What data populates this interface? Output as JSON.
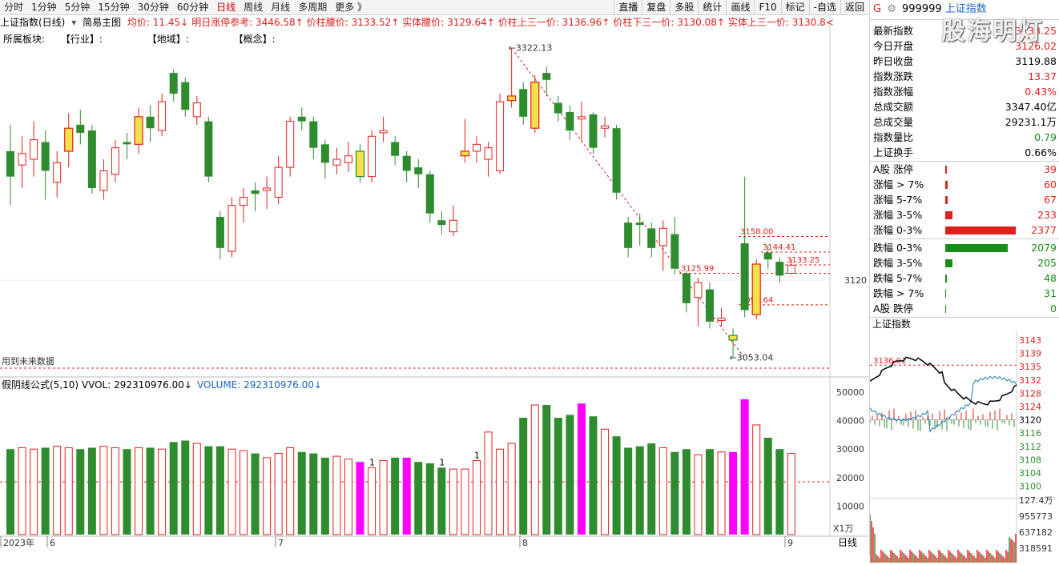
{
  "toolbar": {
    "left": [
      "分时",
      "1分钟",
      "5分钟",
      "15分钟",
      "30分钟",
      "60分钟",
      "日线",
      "周线",
      "月线",
      "多周期",
      "更多 》"
    ],
    "active": "日线",
    "right": [
      "直播",
      "复盘",
      "多股",
      "统计",
      "画线",
      "F10",
      "标记",
      "-自选",
      "返回"
    ]
  },
  "info": {
    "index_name": "上证指数(日线)",
    "main_chart": "简易主图",
    "items": [
      {
        "label": "均价: 11.45",
        "color": "#e0201c",
        "arrow": "↓"
      },
      {
        "label": "明日涨停参考: 3446.58",
        "color": "#e0201c",
        "arrow": "↑"
      },
      {
        "label": "价柱腰价: 3133.52",
        "color": "#e0201c",
        "arrow": "↑"
      },
      {
        "label": "实体腰价: 3129.64",
        "color": "#e0201c",
        "arrow": "↑"
      },
      {
        "label": "价柱上三一价: 3136.96",
        "color": "#e0201c",
        "arrow": "↑"
      },
      {
        "label": "价柱下三一价: 3130.08",
        "color": "#e0201c",
        "arrow": "↑"
      },
      {
        "label": "实体上三一价: 3130.8",
        "color": "#e0201c",
        "arrow": "<"
      }
    ]
  },
  "sectors": {
    "label": "所属板块:",
    "industry": "【行业】:",
    "region": "【地域】:",
    "concept": "【概念】:"
  },
  "chart_data": {
    "type": "candlestick",
    "price_axis_label": "3120",
    "annotations": {
      "high": "3322.13",
      "low": "3053.04",
      "level_3158": "3158.00",
      "level_3144": "3144.41",
      "level_3133": "3133.25",
      "level_3125": "3125.99",
      "level_3098": "3098.64"
    },
    "future_data_label": "用到未来数据",
    "months": [
      "2023年",
      "6",
      "7",
      "8",
      "9"
    ],
    "candles": [
      {
        "o": 3232,
        "c": 3210,
        "h": 3255,
        "l": 3185
      },
      {
        "o": 3220,
        "c": 3230,
        "h": 3245,
        "l": 3200
      },
      {
        "o": 3225,
        "c": 3242,
        "h": 3258,
        "l": 3210
      },
      {
        "o": 3240,
        "c": 3215,
        "h": 3250,
        "l": 3190
      },
      {
        "o": 3205,
        "c": 3222,
        "h": 3232,
        "l": 3192
      },
      {
        "o": 3232,
        "c": 3252,
        "h": 3265,
        "l": 3218
      },
      {
        "o": 3255,
        "c": 3248,
        "h": 3268,
        "l": 3238
      },
      {
        "o": 3250,
        "c": 3200,
        "h": 3255,
        "l": 3195
      },
      {
        "o": 3198,
        "c": 3215,
        "h": 3225,
        "l": 3190
      },
      {
        "o": 3212,
        "c": 3235,
        "h": 3242,
        "l": 3205
      },
      {
        "o": 3240,
        "c": 3238,
        "h": 3248,
        "l": 3225
      },
      {
        "o": 3238,
        "c": 3262,
        "h": 3270,
        "l": 3230
      },
      {
        "o": 3262,
        "c": 3252,
        "h": 3272,
        "l": 3240
      },
      {
        "o": 3250,
        "c": 3275,
        "h": 3282,
        "l": 3245
      },
      {
        "o": 3300,
        "c": 3282,
        "h": 3303,
        "l": 3275
      },
      {
        "o": 3292,
        "c": 3268,
        "h": 3296,
        "l": 3262
      },
      {
        "o": 3262,
        "c": 3274,
        "h": 3280,
        "l": 3255
      },
      {
        "o": 3258,
        "c": 3210,
        "h": 3262,
        "l": 3205
      },
      {
        "o": 3175,
        "c": 3148,
        "h": 3180,
        "l": 3138
      },
      {
        "o": 3145,
        "c": 3185,
        "h": 3192,
        "l": 3140
      },
      {
        "o": 3185,
        "c": 3192,
        "h": 3200,
        "l": 3170
      },
      {
        "o": 3198,
        "c": 3195,
        "h": 3205,
        "l": 3180
      },
      {
        "o": 3198,
        "c": 3200,
        "h": 3210,
        "l": 3182
      },
      {
        "o": 3192,
        "c": 3218,
        "h": 3228,
        "l": 3186
      },
      {
        "o": 3218,
        "c": 3258,
        "h": 3262,
        "l": 3210
      },
      {
        "o": 3262,
        "c": 3258,
        "h": 3270,
        "l": 3250
      },
      {
        "o": 3258,
        "c": 3235,
        "h": 3262,
        "l": 3225
      },
      {
        "o": 3238,
        "c": 3222,
        "h": 3242,
        "l": 3208
      },
      {
        "o": 3220,
        "c": 3225,
        "h": 3235,
        "l": 3212
      },
      {
        "o": 3222,
        "c": 3228,
        "h": 3240,
        "l": 3214
      },
      {
        "o": 3232,
        "c": 3210,
        "h": 3238,
        "l": 3205
      },
      {
        "o": 3210,
        "c": 3245,
        "h": 3250,
        "l": 3205
      },
      {
        "o": 3248,
        "c": 3250,
        "h": 3262,
        "l": 3240
      },
      {
        "o": 3240,
        "c": 3228,
        "h": 3245,
        "l": 3220
      },
      {
        "o": 3228,
        "c": 3215,
        "h": 3232,
        "l": 3205
      },
      {
        "o": 3218,
        "c": 3212,
        "h": 3225,
        "l": 3200
      },
      {
        "o": 3212,
        "c": 3178,
        "h": 3215,
        "l": 3170
      },
      {
        "o": 3172,
        "c": 3168,
        "h": 3180,
        "l": 3160
      },
      {
        "o": 3162,
        "c": 3172,
        "h": 3185,
        "l": 3158
      },
      {
        "o": 3228,
        "c": 3232,
        "h": 3260,
        "l": 3222
      },
      {
        "o": 3232,
        "c": 3238,
        "h": 3245,
        "l": 3222
      },
      {
        "o": 3225,
        "c": 3235,
        "h": 3240,
        "l": 3210
      },
      {
        "o": 3215,
        "c": 3275,
        "h": 3282,
        "l": 3212
      },
      {
        "o": 3276,
        "c": 3280,
        "h": 3322,
        "l": 3270
      },
      {
        "o": 3286,
        "c": 3262,
        "h": 3292,
        "l": 3255
      },
      {
        "o": 3252,
        "c": 3292,
        "h": 3298,
        "l": 3248
      },
      {
        "o": 3300,
        "c": 3294,
        "h": 3305,
        "l": 3280
      },
      {
        "o": 3274,
        "c": 3265,
        "h": 3280,
        "l": 3258
      },
      {
        "o": 3266,
        "c": 3250,
        "h": 3272,
        "l": 3242
      },
      {
        "o": 3260,
        "c": 3262,
        "h": 3275,
        "l": 3240
      },
      {
        "o": 3264,
        "c": 3235,
        "h": 3266,
        "l": 3230
      },
      {
        "o": 3252,
        "c": 3254,
        "h": 3262,
        "l": 3244
      },
      {
        "o": 3252,
        "c": 3196,
        "h": 3255,
        "l": 3190
      },
      {
        "o": 3170,
        "c": 3148,
        "h": 3175,
        "l": 3140
      },
      {
        "o": 3170,
        "c": 3168,
        "h": 3178,
        "l": 3150
      },
      {
        "o": 3165,
        "c": 3148,
        "h": 3170,
        "l": 3140
      },
      {
        "o": 3150,
        "c": 3165,
        "h": 3172,
        "l": 3128
      },
      {
        "o": 3160,
        "c": 3130,
        "h": 3175,
        "l": 3125
      },
      {
        "o": 3126,
        "c": 3100,
        "h": 3128,
        "l": 3092
      },
      {
        "o": 3105,
        "c": 3118,
        "h": 3122,
        "l": 3080
      },
      {
        "o": 3112,
        "c": 3084,
        "h": 3118,
        "l": 3078
      },
      {
        "o": 3085,
        "c": 3087,
        "h": 3096,
        "l": 3080
      },
      {
        "o": 3072,
        "c": 3068,
        "h": 3078,
        "l": 3053
      },
      {
        "o": 3152,
        "c": 3094,
        "h": 3210,
        "l": 3088
      },
      {
        "o": 3090,
        "c": 3134,
        "h": 3138,
        "l": 3086
      },
      {
        "o": 3144,
        "c": 3138,
        "h": 3150,
        "l": 3130
      },
      {
        "o": 3136,
        "c": 3124,
        "h": 3140,
        "l": 3118
      },
      {
        "o": 3126,
        "c": 3133,
        "h": 3138,
        "l": 3125
      }
    ],
    "yellow_candles": [
      5,
      11,
      30,
      39,
      43,
      45,
      62,
      64
    ],
    "volume": {
      "title": "假阴线公式(5,10)",
      "vvol_label": "VVOL: 292310976.00",
      "vvol_arrow": "↓",
      "volume_label": "VOLUME: 292310976.00",
      "volume_arrow": "↓",
      "unit_label": "X1万",
      "yticks": [
        "50000",
        "40000",
        "30000",
        "20000",
        "10000"
      ],
      "values": [
        30000,
        30500,
        30000,
        30500,
        31000,
        30500,
        30000,
        30500,
        31000,
        30500,
        30000,
        30500,
        30500,
        30000,
        32500,
        33000,
        32000,
        31000,
        31000,
        30000,
        29500,
        28500,
        27000,
        28500,
        30500,
        29000,
        28500,
        27000,
        27500,
        26500,
        25500,
        23500,
        26000,
        27000,
        27000,
        25500,
        25000,
        23500,
        23000,
        23000,
        26000,
        36000,
        30000,
        32000,
        41000,
        45500,
        45500,
        41000,
        42000,
        46000,
        41500,
        37000,
        34500,
        30500,
        31000,
        32000,
        30500,
        29000,
        30000,
        28000,
        30000,
        29000,
        29000,
        47500,
        38500,
        34000,
        30000,
        28500
      ],
      "magenta": [
        30,
        34,
        49,
        62,
        63
      ],
      "markers": [
        {
          "i": 31,
          "t": "1"
        },
        {
          "i": 37,
          "t": "1"
        },
        {
          "i": 40,
          "t": "1"
        }
      ],
      "dashed_level": 18500
    }
  },
  "right_panel": {
    "code": "999999",
    "name": "上证指数",
    "flag": "G",
    "rows": [
      {
        "label": "最新指数",
        "value": "3133.25",
        "color": "#e0201c"
      },
      {
        "label": "今日开盘",
        "value": "3126.02",
        "color": "#e0201c"
      },
      {
        "label": "昨日收盘",
        "value": "3119.88",
        "color": "#000000"
      },
      {
        "label": "指数涨跌",
        "value": "13.37",
        "color": "#e0201c"
      },
      {
        "label": "指数涨幅",
        "value": "0.43%",
        "color": "#e0201c"
      },
      {
        "label": "总成交额",
        "value": "3347.40亿",
        "color": "#000000"
      },
      {
        "label": "总成交量",
        "value": "29231.1万",
        "color": "#000000"
      },
      {
        "label": "指数量比",
        "value": "0.79",
        "color": "#1a8c1a"
      },
      {
        "label": "上证换手",
        "value": "0.66%",
        "color": "#000000"
      }
    ],
    "breadth": [
      {
        "label": "A股 涨停",
        "value": "39",
        "color": "#e0201c",
        "bar": 0.01
      },
      {
        "label": "涨幅 > 7%",
        "value": "60",
        "color": "#e0201c",
        "bar": 0.015
      },
      {
        "label": "涨幅 5-7%",
        "value": "67",
        "color": "#e0201c",
        "bar": 0.018
      },
      {
        "label": "涨幅 3-5%",
        "value": "233",
        "color": "#e0201c",
        "bar": 0.05
      },
      {
        "label": "涨幅 0-3%",
        "value": "2377",
        "color": "#e0201c",
        "bar": 0.52
      },
      {
        "label": "跌幅 0-3%",
        "value": "2079",
        "color": "#1a8c1a",
        "bar": 0.46
      },
      {
        "label": "跌幅 3-5%",
        "value": "205",
        "color": "#1a8c1a",
        "bar": 0.05
      },
      {
        "label": "跌幅 5-7%",
        "value": "48",
        "color": "#1a8c1a",
        "bar": 0.01
      },
      {
        "label": "跌幅 > 7%",
        "value": "31",
        "color": "#1a8c1a",
        "bar": 0.008
      },
      {
        "label": "A股 跌停",
        "value": "0",
        "color": "#1a8c1a",
        "bar": 0.004
      }
    ],
    "mini_title": "上证指数",
    "mini_yticks": [
      "3143",
      "3139",
      "3135",
      "3132",
      "3128",
      "3124",
      "3120",
      "3116",
      "3112",
      "3108",
      "3104",
      "3100"
    ],
    "mini_mark": "3136.01",
    "mini_vol_ticks": [
      "127.4万",
      "955773",
      "637182",
      "318591"
    ]
  },
  "watermark": "股海明灯",
  "bottom_tab": "日线",
  "colors": {
    "up": "#e0201c",
    "down": "#2e8b2e",
    "yellow": "#f2e14a",
    "magenta": "#ff00ff",
    "grid": "#e8c8c8"
  }
}
